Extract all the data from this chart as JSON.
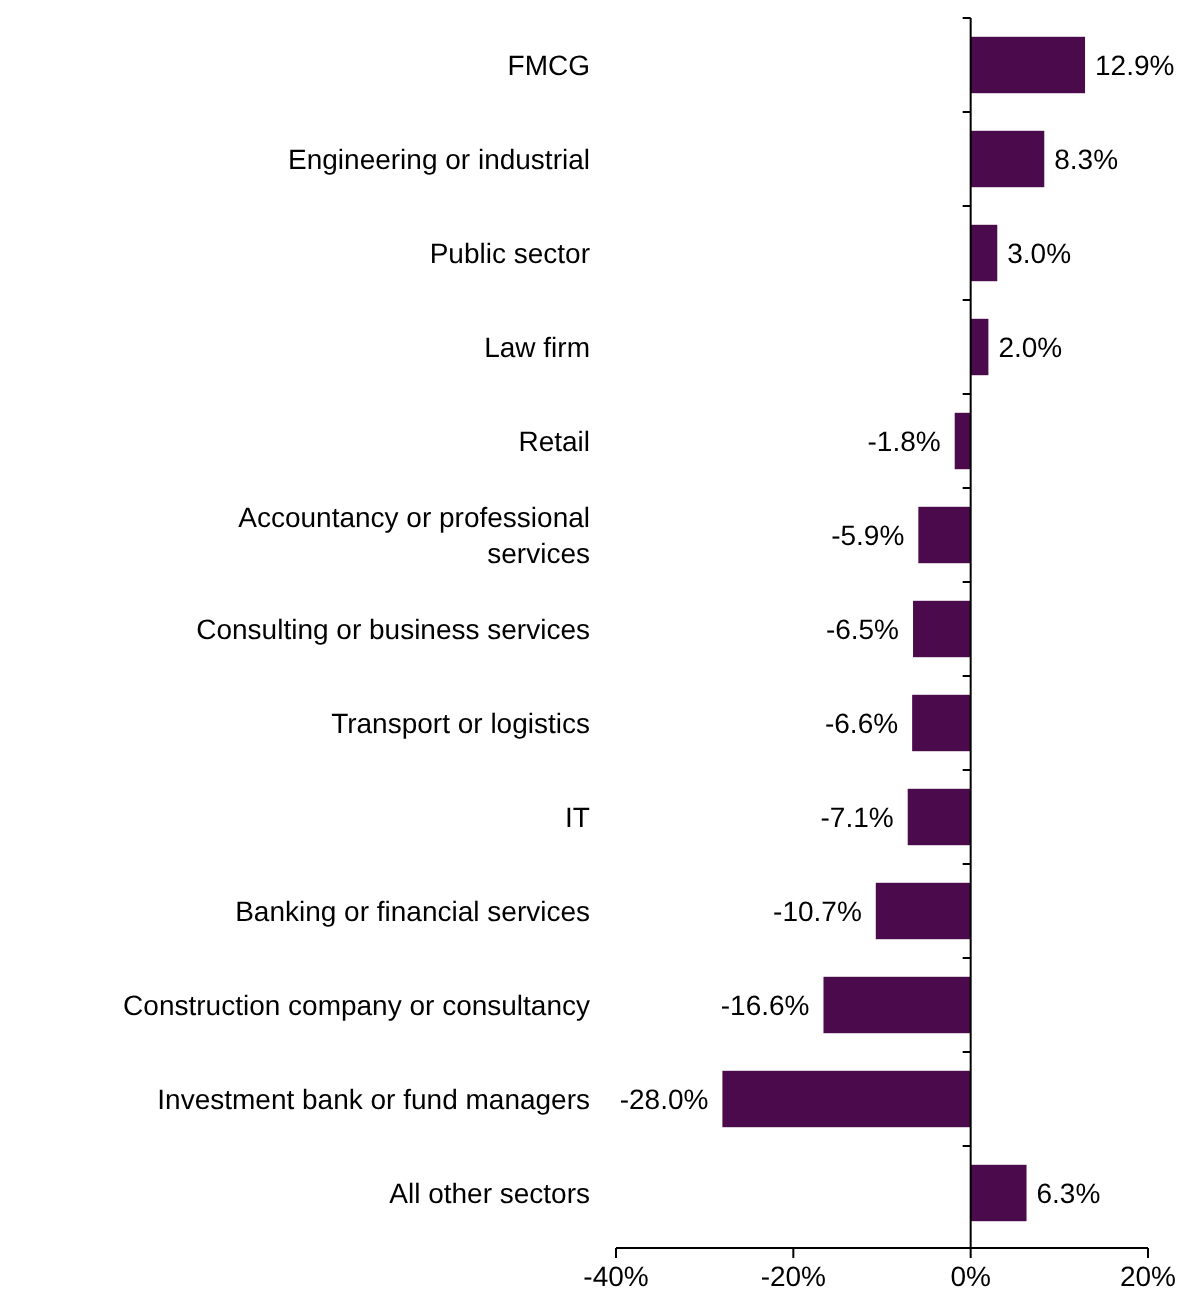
{
  "chart_data": {
    "type": "bar",
    "orientation": "horizontal",
    "categories": [
      "FMCG",
      "Engineering or industrial",
      "Public sector",
      "Law firm",
      "Retail",
      "Accountancy or professional services",
      "Consulting or business services",
      "Transport or logistics",
      "IT",
      "Banking or financial services",
      "Construction company or consultancy",
      "Investment bank or fund managers",
      "All other sectors"
    ],
    "values": [
      12.9,
      8.3,
      3.0,
      2.0,
      -1.8,
      -5.9,
      -6.5,
      -6.6,
      -7.1,
      -10.7,
      -16.6,
      -28.0,
      6.3
    ],
    "value_labels": [
      "12.9%",
      "8.3%",
      "3.0%",
      "2.0%",
      "-1.8%",
      "-5.9%",
      "-6.5%",
      "-6.6%",
      "-7.1%",
      "-10.7%",
      "-16.6%",
      "-28.0%",
      "6.3%"
    ],
    "color": "#4b0a4b",
    "xlim": [
      -40,
      20
    ],
    "xticks": [
      {
        "value": -40,
        "label": "-40%"
      },
      {
        "value": -20,
        "label": "-20%"
      },
      {
        "value": 0,
        "label": "0%"
      },
      {
        "value": 20,
        "label": "20%"
      }
    ]
  }
}
